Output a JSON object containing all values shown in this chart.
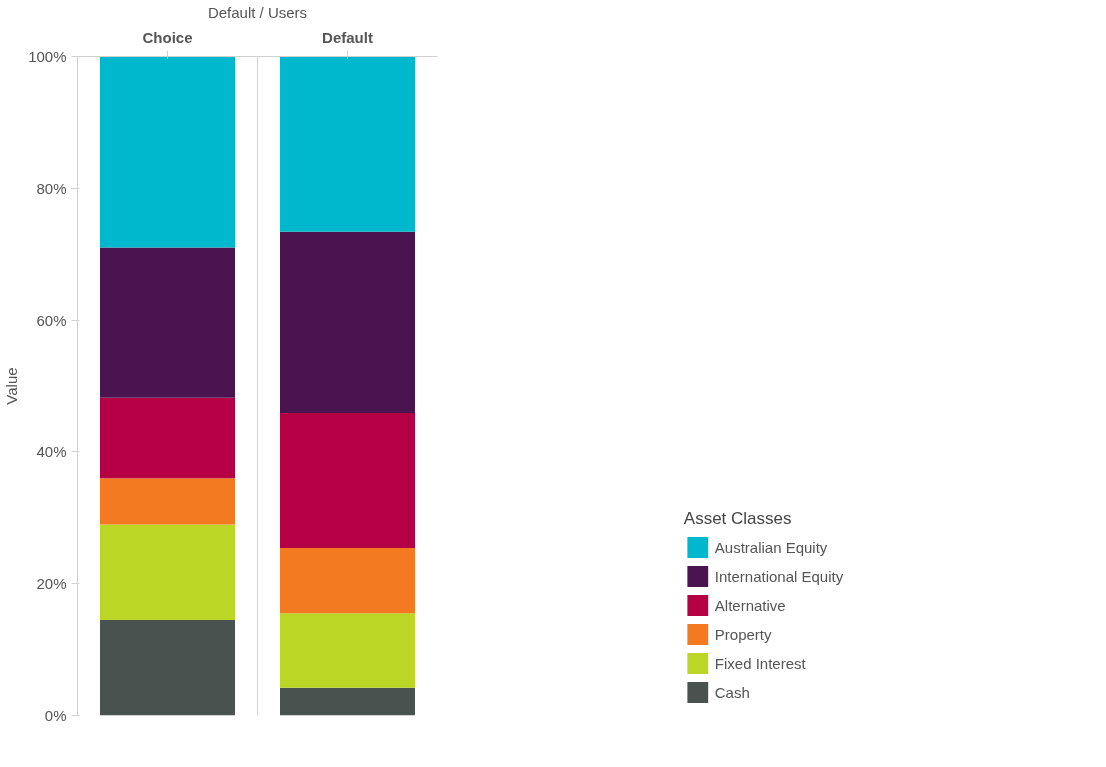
{
  "chart_data": {
    "type": "bar",
    "stacked": true,
    "xlabel": "Default / Users",
    "ylabel": "Value",
    "legend_title": "Asset Classes",
    "legend": "right",
    "categories": [
      "Choice",
      "Default"
    ],
    "ylim": [
      0,
      100
    ],
    "yticks": [
      {
        "value": 0,
        "label": "0%"
      },
      {
        "value": 20,
        "label": "20%"
      },
      {
        "value": 40,
        "label": "40%"
      },
      {
        "value": 60,
        "label": "60%"
      },
      {
        "value": 80,
        "label": "80%"
      },
      {
        "value": 100,
        "label": "100%"
      }
    ],
    "series": [
      {
        "name": "Cash",
        "color": "#4a524f",
        "values": [
          14.5,
          4.2
        ]
      },
      {
        "name": "Fixed Interest",
        "color": "#bcd626",
        "values": [
          14.5,
          11.3
        ]
      },
      {
        "name": "Property",
        "color": "#f47a22",
        "values": [
          7.0,
          9.9
        ]
      },
      {
        "name": "Alternative",
        "color": "#b50046",
        "values": [
          12.2,
          20.5
        ]
      },
      {
        "name": "International Equity",
        "color": "#4a1450",
        "values": [
          22.8,
          27.5
        ]
      },
      {
        "name": "Australian Equity",
        "color": "#00b8ce",
        "values": [
          29.0,
          26.6
        ]
      }
    ]
  }
}
